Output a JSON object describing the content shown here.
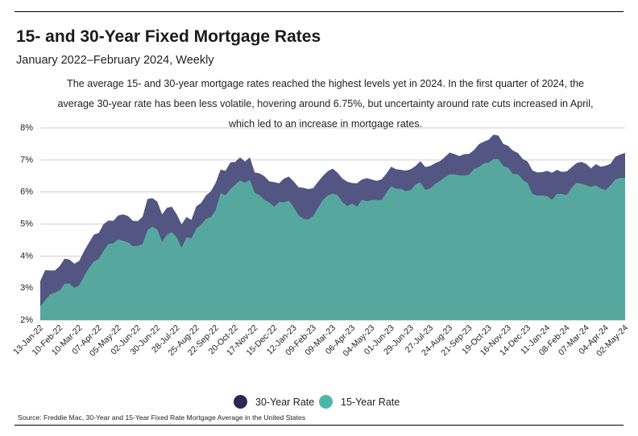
{
  "header": {
    "title": "15- and 30-Year Fixed Mortgage Rates",
    "subtitle": "January 2022–February 2024, Weekly",
    "description": "The average 15- and 30-year mortgage rates reached the highest levels yet in 2024. In the first quarter of 2024, the average 30-year rate has been less volatile, hovering around 6.75%, but uncertainty around rate cuts increased in April, which led to an increase in mortgage rates."
  },
  "source": "Source:  Freddie Mac, 30-Year  and 15-Year Fixed Rate Mortgage Average in the United States",
  "colors": {
    "rate30": "#535583",
    "rate15": "#56a89f",
    "gridline": "#cfcfcf",
    "legend30": "#272a52",
    "legend15": "#4bb8a7"
  },
  "chart_data": {
    "type": "area",
    "title": "",
    "xlabel": "",
    "ylabel": "",
    "ylim": [
      2,
      8
    ],
    "yticks": [
      "2%",
      "3%",
      "4%",
      "5%",
      "6%",
      "7%",
      "8%"
    ],
    "grid": true,
    "legend_position": "bottom",
    "xtick_labels": [
      "13-Jan-22",
      "10-Feb-22",
      "10-Mar-22",
      "07-Apr-22",
      "05-May-22",
      "02-Jun-22",
      "30-Jun-22",
      "28-Jul-22",
      "25-Aug-22",
      "22-Sep-22",
      "20-Oct-22",
      "17-Nov-22",
      "15-Dec-22",
      "12-Jan-23",
      "09-Feb-23",
      "09-Mar-23",
      "06-Apr-23",
      "04-May-23",
      "01-Jun-23",
      "29-Jun-23",
      "27-Jul-23",
      "24-Aug-23",
      "21-Sep-23",
      "19-Oct-23",
      "16-Nov-23",
      "14-Dec-23",
      "11-Jan-24",
      "08-Feb-24",
      "07-Mar-24",
      "04-Apr-24",
      "02-May-24"
    ],
    "x": [
      "2022-01-13",
      "2022-01-20",
      "2022-01-27",
      "2022-02-03",
      "2022-02-10",
      "2022-02-17",
      "2022-02-24",
      "2022-03-03",
      "2022-03-10",
      "2022-03-17",
      "2022-03-24",
      "2022-03-31",
      "2022-04-07",
      "2022-04-14",
      "2022-04-21",
      "2022-04-28",
      "2022-05-05",
      "2022-05-12",
      "2022-05-19",
      "2022-05-26",
      "2022-06-02",
      "2022-06-09",
      "2022-06-16",
      "2022-06-23",
      "2022-06-30",
      "2022-07-07",
      "2022-07-14",
      "2022-07-21",
      "2022-07-28",
      "2022-08-04",
      "2022-08-11",
      "2022-08-18",
      "2022-08-25",
      "2022-09-01",
      "2022-09-08",
      "2022-09-15",
      "2022-09-22",
      "2022-09-29",
      "2022-10-06",
      "2022-10-13",
      "2022-10-20",
      "2022-10-27",
      "2022-11-03",
      "2022-11-10",
      "2022-11-17",
      "2022-11-24",
      "2022-12-01",
      "2022-12-08",
      "2022-12-15",
      "2022-12-22",
      "2022-12-29",
      "2023-01-05",
      "2023-01-12",
      "2023-01-19",
      "2023-01-26",
      "2023-02-02",
      "2023-02-09",
      "2023-02-16",
      "2023-02-23",
      "2023-03-02",
      "2023-03-09",
      "2023-03-16",
      "2023-03-23",
      "2023-03-30",
      "2023-04-06",
      "2023-04-13",
      "2023-04-20",
      "2023-04-27",
      "2023-05-04",
      "2023-05-11",
      "2023-05-18",
      "2023-05-25",
      "2023-06-01",
      "2023-06-08",
      "2023-06-15",
      "2023-06-22",
      "2023-06-29",
      "2023-07-06",
      "2023-07-13",
      "2023-07-20",
      "2023-07-27",
      "2023-08-03",
      "2023-08-10",
      "2023-08-17",
      "2023-08-24",
      "2023-08-31",
      "2023-09-07",
      "2023-09-14",
      "2023-09-21",
      "2023-09-28",
      "2023-10-05",
      "2023-10-12",
      "2023-10-19",
      "2023-10-26",
      "2023-11-02",
      "2023-11-09",
      "2023-11-16",
      "2023-11-22",
      "2023-11-30",
      "2023-12-07",
      "2023-12-14",
      "2023-12-21",
      "2023-12-28",
      "2024-01-04",
      "2024-01-11",
      "2024-01-18",
      "2024-01-25",
      "2024-02-01",
      "2024-02-08",
      "2024-02-15",
      "2024-02-22",
      "2024-02-29",
      "2024-03-07",
      "2024-03-14",
      "2024-03-21",
      "2024-03-28",
      "2024-04-04",
      "2024-04-11",
      "2024-04-18",
      "2024-04-25",
      "2024-05-02"
    ],
    "series": [
      {
        "name": "30-Year Rate",
        "values": [
          3.22,
          3.56,
          3.55,
          3.55,
          3.69,
          3.92,
          3.89,
          3.76,
          3.85,
          4.16,
          4.42,
          4.67,
          4.72,
          5.0,
          5.11,
          5.1,
          5.27,
          5.3,
          5.25,
          5.1,
          5.09,
          5.23,
          5.78,
          5.81,
          5.7,
          5.3,
          5.51,
          5.54,
          5.3,
          4.99,
          5.22,
          5.13,
          5.55,
          5.66,
          5.89,
          6.02,
          6.29,
          6.7,
          6.66,
          6.92,
          6.94,
          7.08,
          6.95,
          7.08,
          6.61,
          6.58,
          6.49,
          6.33,
          6.31,
          6.27,
          6.42,
          6.48,
          6.33,
          6.15,
          6.13,
          6.09,
          6.12,
          6.32,
          6.5,
          6.65,
          6.73,
          6.6,
          6.42,
          6.32,
          6.28,
          6.27,
          6.39,
          6.43,
          6.39,
          6.35,
          6.39,
          6.57,
          6.79,
          6.71,
          6.69,
          6.67,
          6.71,
          6.81,
          6.96,
          6.78,
          6.81,
          6.9,
          6.96,
          7.09,
          7.23,
          7.18,
          7.12,
          7.18,
          7.19,
          7.31,
          7.49,
          7.57,
          7.63,
          7.79,
          7.76,
          7.5,
          7.44,
          7.29,
          7.22,
          7.03,
          6.95,
          6.67,
          6.61,
          6.62,
          6.66,
          6.6,
          6.69,
          6.63,
          6.64,
          6.77,
          6.9,
          6.94,
          6.88,
          6.74,
          6.87,
          6.79,
          6.82,
          6.88,
          7.1,
          7.17,
          7.22
        ]
      },
      {
        "name": "15-Year Rate",
        "values": [
          2.43,
          2.62,
          2.8,
          2.86,
          2.93,
          3.14,
          3.14,
          3.01,
          3.09,
          3.38,
          3.63,
          3.83,
          3.91,
          4.17,
          4.38,
          4.4,
          4.52,
          4.48,
          4.43,
          4.31,
          4.32,
          4.38,
          4.81,
          4.92,
          4.83,
          4.45,
          4.67,
          4.75,
          4.58,
          4.26,
          4.59,
          4.55,
          4.85,
          4.98,
          5.16,
          5.21,
          5.44,
          5.96,
          5.9,
          6.09,
          6.23,
          6.36,
          6.29,
          6.38,
          5.98,
          5.9,
          5.76,
          5.67,
          5.54,
          5.68,
          5.68,
          5.73,
          5.52,
          5.28,
          5.17,
          5.14,
          5.25,
          5.51,
          5.76,
          5.89,
          5.95,
          5.9,
          5.68,
          5.56,
          5.64,
          5.54,
          5.76,
          5.71,
          5.75,
          5.75,
          5.75,
          5.97,
          6.18,
          6.1,
          6.1,
          6.03,
          6.06,
          6.24,
          6.3,
          6.06,
          6.11,
          6.25,
          6.34,
          6.46,
          6.55,
          6.55,
          6.52,
          6.51,
          6.54,
          6.72,
          6.78,
          6.89,
          6.92,
          7.03,
          7.03,
          6.81,
          6.76,
          6.56,
          6.56,
          6.38,
          6.28,
          5.93,
          5.89,
          5.89,
          5.87,
          5.76,
          5.94,
          5.94,
          5.9,
          6.12,
          6.29,
          6.26,
          6.21,
          6.16,
          6.21,
          6.11,
          6.06,
          6.21,
          6.39,
          6.44,
          6.44
        ]
      }
    ]
  },
  "legend": {
    "rate30_label": "30-Year Rate",
    "rate15_label": "15-Year Rate"
  }
}
